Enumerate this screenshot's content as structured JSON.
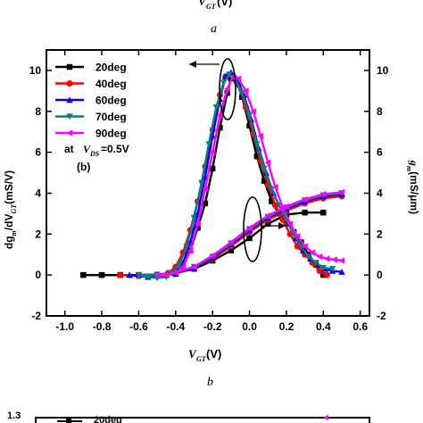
{
  "top_fragment": {
    "xlabel_main": "V",
    "xlabel_sub": "GT",
    "xlabel_unit": "(V)",
    "caption": "a"
  },
  "bottom_fragment": {
    "ytick": "1.3",
    "legend_text": "20deg"
  },
  "chart_data": {
    "type": "line",
    "caption": "b",
    "xlabel": {
      "main": "V",
      "sub": "GT",
      "unit": " (V)"
    },
    "ylabel_left": {
      "p1": "dg",
      "p1sub": "m",
      "p2": "/dV",
      "p2sub": "GT",
      "unit": "(mS/V)"
    },
    "ylabel_right": {
      "main": "g",
      "sub": "m",
      "unit": "(mS/μm)"
    },
    "xlim": [
      -1.1,
      0.65
    ],
    "ylim": [
      -2,
      11
    ],
    "xticks": [
      -1.0,
      -0.8,
      -0.6,
      -0.4,
      -0.2,
      0.0,
      0.2,
      0.4,
      0.6
    ],
    "xtick_labels": [
      "-1.0",
      "-0.8",
      "-0.6",
      "-0.4",
      "-0.2",
      "0.0",
      "0.2",
      "0.4",
      "0.6"
    ],
    "yticks": [
      -2,
      0,
      2,
      4,
      6,
      8,
      10
    ],
    "ytick_labels": [
      "-2",
      "0",
      "2",
      "4",
      "6",
      "8",
      "10"
    ],
    "annotation_lines": [
      {
        "main": "at ",
        "italic": "V",
        "sub": "DS",
        "rest": "=0.5V"
      },
      {
        "main": "(b)"
      }
    ],
    "series": [
      {
        "name": "20deg",
        "color": "#000000",
        "marker": "square",
        "dgm": [
          [
            -0.9,
            0
          ],
          [
            -0.8,
            0
          ],
          [
            -0.7,
            0
          ],
          [
            -0.6,
            0
          ],
          [
            -0.5,
            0
          ],
          [
            -0.4,
            0.05
          ],
          [
            -0.36,
            0.4
          ],
          [
            -0.32,
            1.2
          ],
          [
            -0.28,
            2.3
          ],
          [
            -0.24,
            3.5
          ],
          [
            -0.2,
            5.2
          ],
          [
            -0.16,
            7.2
          ],
          [
            -0.12,
            8.9
          ],
          [
            -0.1,
            9.6
          ],
          [
            -0.07,
            9.5
          ],
          [
            -0.04,
            8.7
          ],
          [
            0.0,
            7.3
          ],
          [
            0.04,
            5.8
          ],
          [
            0.08,
            4.6
          ],
          [
            0.12,
            3.6
          ],
          [
            0.16,
            3.0
          ],
          [
            0.2,
            2.6
          ],
          [
            0.24,
            2.1
          ],
          [
            0.28,
            1.6
          ],
          [
            0.32,
            1.0
          ],
          [
            0.36,
            0.5
          ],
          [
            0.4,
            0
          ]
        ],
        "gm": [
          [
            -0.9,
            0
          ],
          [
            -0.8,
            0
          ],
          [
            -0.7,
            0
          ],
          [
            -0.6,
            0
          ],
          [
            -0.5,
            0.02
          ],
          [
            -0.4,
            0.1
          ],
          [
            -0.3,
            0.3
          ],
          [
            -0.2,
            0.7
          ],
          [
            -0.1,
            1.2
          ],
          [
            0.0,
            1.8
          ],
          [
            0.1,
            2.5
          ],
          [
            0.2,
            2.95
          ],
          [
            0.3,
            3.05
          ],
          [
            0.4,
            3.05
          ]
        ]
      },
      {
        "name": "40deg",
        "color": "#ff0000",
        "marker": "circle",
        "dgm": [
          [
            -0.7,
            0
          ],
          [
            -0.6,
            -0.05
          ],
          [
            -0.5,
            0
          ],
          [
            -0.44,
            0.1
          ],
          [
            -0.4,
            0.4
          ],
          [
            -0.36,
            1.1
          ],
          [
            -0.32,
            2.2
          ],
          [
            -0.28,
            3.6
          ],
          [
            -0.24,
            5.3
          ],
          [
            -0.2,
            7.1
          ],
          [
            -0.16,
            8.8
          ],
          [
            -0.13,
            9.7
          ],
          [
            -0.1,
            9.8
          ],
          [
            -0.06,
            9.3
          ],
          [
            -0.02,
            8.2
          ],
          [
            0.02,
            6.9
          ],
          [
            0.06,
            5.6
          ],
          [
            0.1,
            4.4
          ],
          [
            0.14,
            3.4
          ],
          [
            0.18,
            2.7
          ],
          [
            0.22,
            2.0
          ],
          [
            0.26,
            1.4
          ],
          [
            0.3,
            1.0
          ],
          [
            0.34,
            0.6
          ],
          [
            0.38,
            0.2
          ],
          [
            0.42,
            0
          ]
        ],
        "gm": [
          [
            -0.7,
            0
          ],
          [
            -0.6,
            0
          ],
          [
            -0.5,
            0.02
          ],
          [
            -0.4,
            0.1
          ],
          [
            -0.3,
            0.35
          ],
          [
            -0.2,
            0.8
          ],
          [
            -0.1,
            1.4
          ],
          [
            0.0,
            2.1
          ],
          [
            0.1,
            2.7
          ],
          [
            0.2,
            3.15
          ],
          [
            0.3,
            3.5
          ],
          [
            0.4,
            3.75
          ],
          [
            0.5,
            3.85
          ]
        ]
      },
      {
        "name": "60deg",
        "color": "#0000ff",
        "marker": "triangle-up",
        "dgm": [
          [
            -0.65,
            0
          ],
          [
            -0.55,
            -0.1
          ],
          [
            -0.45,
            0
          ],
          [
            -0.4,
            0.2
          ],
          [
            -0.36,
            0.6
          ],
          [
            -0.32,
            1.6
          ],
          [
            -0.28,
            3.0
          ],
          [
            -0.24,
            4.8
          ],
          [
            -0.2,
            6.8
          ],
          [
            -0.16,
            8.6
          ],
          [
            -0.13,
            9.7
          ],
          [
            -0.1,
            9.9
          ],
          [
            -0.07,
            9.6
          ],
          [
            -0.03,
            8.8
          ],
          [
            0.01,
            7.6
          ],
          [
            0.05,
            6.2
          ],
          [
            0.09,
            5.0
          ],
          [
            0.13,
            4.0
          ],
          [
            0.17,
            3.2
          ],
          [
            0.21,
            2.5
          ],
          [
            0.25,
            1.8
          ],
          [
            0.29,
            1.2
          ],
          [
            0.33,
            0.8
          ],
          [
            0.37,
            0.5
          ],
          [
            0.41,
            0.3
          ],
          [
            0.45,
            0.2
          ],
          [
            0.5,
            0.15
          ]
        ],
        "gm": [
          [
            -0.65,
            0
          ],
          [
            -0.5,
            0.02
          ],
          [
            -0.4,
            0.1
          ],
          [
            -0.3,
            0.35
          ],
          [
            -0.2,
            0.85
          ],
          [
            -0.1,
            1.5
          ],
          [
            0.0,
            2.2
          ],
          [
            0.1,
            2.8
          ],
          [
            0.2,
            3.25
          ],
          [
            0.3,
            3.6
          ],
          [
            0.4,
            3.85
          ],
          [
            0.5,
            3.95
          ]
        ]
      },
      {
        "name": "70deg",
        "color": "#008080",
        "marker": "triangle-down",
        "dgm": [
          [
            -0.6,
            0
          ],
          [
            -0.55,
            -0.1
          ],
          [
            -0.5,
            -0.15
          ],
          [
            -0.45,
            -0.1
          ],
          [
            -0.42,
            0.1
          ],
          [
            -0.38,
            0.5
          ],
          [
            -0.34,
            1.4
          ],
          [
            -0.3,
            2.8
          ],
          [
            -0.26,
            4.5
          ],
          [
            -0.22,
            6.4
          ],
          [
            -0.18,
            8.2
          ],
          [
            -0.14,
            9.4
          ],
          [
            -0.11,
            9.8
          ],
          [
            -0.08,
            9.6
          ],
          [
            -0.04,
            8.9
          ],
          [
            0.0,
            7.8
          ],
          [
            0.04,
            6.4
          ],
          [
            0.08,
            5.2
          ],
          [
            0.12,
            4.2
          ],
          [
            0.16,
            3.4
          ],
          [
            0.2,
            2.7
          ],
          [
            0.24,
            2.0
          ],
          [
            0.28,
            1.4
          ],
          [
            0.32,
            0.9
          ],
          [
            0.36,
            0.6
          ],
          [
            0.4,
            0.35
          ],
          [
            0.45,
            0.3
          ]
        ],
        "gm": [
          [
            -0.6,
            0
          ],
          [
            -0.5,
            0.02
          ],
          [
            -0.4,
            0.12
          ],
          [
            -0.3,
            0.4
          ],
          [
            -0.2,
            0.9
          ],
          [
            -0.1,
            1.55
          ],
          [
            0.0,
            2.25
          ],
          [
            0.1,
            2.85
          ],
          [
            0.2,
            3.3
          ],
          [
            0.3,
            3.65
          ],
          [
            0.4,
            3.9
          ],
          [
            0.5,
            4.0
          ]
        ]
      },
      {
        "name": "90deg",
        "color": "#ff00ff",
        "marker": "triangle-left",
        "dgm": [
          [
            -0.5,
            0
          ],
          [
            -0.45,
            0
          ],
          [
            -0.4,
            0.1
          ],
          [
            -0.36,
            0.4
          ],
          [
            -0.32,
            1.2
          ],
          [
            -0.28,
            2.5
          ],
          [
            -0.24,
            4.2
          ],
          [
            -0.2,
            6.0
          ],
          [
            -0.16,
            7.8
          ],
          [
            -0.12,
            9.1
          ],
          [
            -0.09,
            9.7
          ],
          [
            -0.06,
            9.6
          ],
          [
            -0.02,
            9.0
          ],
          [
            0.02,
            8.0
          ],
          [
            0.06,
            6.8
          ],
          [
            0.1,
            5.5
          ],
          [
            0.14,
            4.3
          ],
          [
            0.18,
            3.3
          ],
          [
            0.22,
            2.5
          ],
          [
            0.26,
            1.9
          ],
          [
            0.3,
            1.4
          ],
          [
            0.34,
            1.1
          ],
          [
            0.38,
            0.9
          ],
          [
            0.42,
            0.8
          ],
          [
            0.46,
            0.75
          ],
          [
            0.5,
            0.7
          ]
        ],
        "gm": [
          [
            -0.5,
            0
          ],
          [
            -0.4,
            0.12
          ],
          [
            -0.3,
            0.4
          ],
          [
            -0.2,
            0.95
          ],
          [
            -0.1,
            1.6
          ],
          [
            0.0,
            2.3
          ],
          [
            0.1,
            2.9
          ],
          [
            0.2,
            3.35
          ],
          [
            0.3,
            3.7
          ],
          [
            0.4,
            3.95
          ],
          [
            0.5,
            4.05
          ]
        ]
      }
    ]
  }
}
